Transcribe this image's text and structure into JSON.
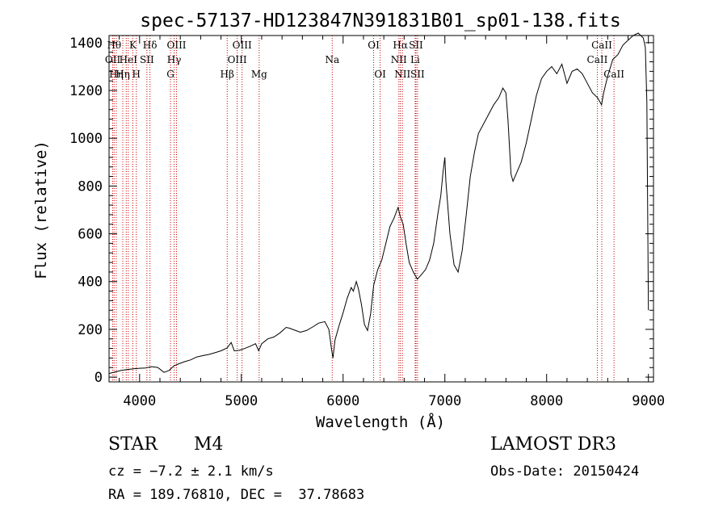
{
  "chart_data": {
    "type": "line",
    "title": "spec-57137-HD123847N391831B01_sp01-138.fits",
    "xlabel": "Wavelength (Å)",
    "ylabel": "Flux (relative)",
    "xlim": [
      3700,
      9050
    ],
    "ylim": [
      -20,
      1430
    ],
    "xticks": [
      4000,
      5000,
      6000,
      7000,
      8000,
      9000
    ],
    "yticks": [
      0,
      200,
      400,
      600,
      800,
      1000,
      1200,
      1400
    ],
    "series": [
      {
        "name": "spectrum",
        "points": [
          [
            3700,
            15
          ],
          [
            3760,
            22
          ],
          [
            3820,
            28
          ],
          [
            3880,
            32
          ],
          [
            3940,
            35
          ],
          [
            4000,
            37
          ],
          [
            4060,
            38
          ],
          [
            4120,
            44
          ],
          [
            4180,
            40
          ],
          [
            4240,
            20
          ],
          [
            4290,
            28
          ],
          [
            4340,
            48
          ],
          [
            4400,
            58
          ],
          [
            4450,
            66
          ],
          [
            4500,
            72
          ],
          [
            4560,
            84
          ],
          [
            4620,
            90
          ],
          [
            4680,
            95
          ],
          [
            4740,
            102
          ],
          [
            4800,
            110
          ],
          [
            4860,
            122
          ],
          [
            4900,
            145
          ],
          [
            4930,
            110
          ],
          [
            4980,
            112
          ],
          [
            5020,
            118
          ],
          [
            5080,
            128
          ],
          [
            5140,
            140
          ],
          [
            5170,
            110
          ],
          [
            5200,
            140
          ],
          [
            5260,
            160
          ],
          [
            5320,
            168
          ],
          [
            5380,
            185
          ],
          [
            5440,
            208
          ],
          [
            5470,
            205
          ],
          [
            5530,
            196
          ],
          [
            5580,
            188
          ],
          [
            5640,
            195
          ],
          [
            5700,
            210
          ],
          [
            5760,
            226
          ],
          [
            5820,
            232
          ],
          [
            5860,
            200
          ],
          [
            5885,
            120
          ],
          [
            5900,
            80
          ],
          [
            5920,
            155
          ],
          [
            5960,
            215
          ],
          [
            6000,
            270
          ],
          [
            6040,
            330
          ],
          [
            6080,
            375
          ],
          [
            6100,
            360
          ],
          [
            6130,
            400
          ],
          [
            6150,
            370
          ],
          [
            6180,
            305
          ],
          [
            6210,
            220
          ],
          [
            6240,
            195
          ],
          [
            6270,
            265
          ],
          [
            6300,
            385
          ],
          [
            6340,
            450
          ],
          [
            6380,
            490
          ],
          [
            6420,
            560
          ],
          [
            6460,
            630
          ],
          [
            6500,
            665
          ],
          [
            6540,
            710
          ],
          [
            6560,
            675
          ],
          [
            6590,
            640
          ],
          [
            6620,
            555
          ],
          [
            6650,
            480
          ],
          [
            6690,
            440
          ],
          [
            6730,
            410
          ],
          [
            6770,
            430
          ],
          [
            6810,
            450
          ],
          [
            6850,
            490
          ],
          [
            6890,
            560
          ],
          [
            6930,
            680
          ],
          [
            6960,
            760
          ],
          [
            6980,
            850
          ],
          [
            7000,
            920
          ],
          [
            7010,
            820
          ],
          [
            7050,
            600
          ],
          [
            7090,
            470
          ],
          [
            7130,
            440
          ],
          [
            7170,
            530
          ],
          [
            7210,
            680
          ],
          [
            7250,
            840
          ],
          [
            7290,
            940
          ],
          [
            7330,
            1020
          ],
          [
            7380,
            1060
          ],
          [
            7430,
            1100
          ],
          [
            7480,
            1140
          ],
          [
            7530,
            1170
          ],
          [
            7570,
            1210
          ],
          [
            7600,
            1190
          ],
          [
            7620,
            1080
          ],
          [
            7650,
            850
          ],
          [
            7670,
            820
          ],
          [
            7710,
            860
          ],
          [
            7750,
            900
          ],
          [
            7800,
            980
          ],
          [
            7850,
            1080
          ],
          [
            7900,
            1180
          ],
          [
            7950,
            1250
          ],
          [
            8000,
            1280
          ],
          [
            8050,
            1300
          ],
          [
            8100,
            1270
          ],
          [
            8150,
            1310
          ],
          [
            8200,
            1230
          ],
          [
            8250,
            1280
          ],
          [
            8300,
            1290
          ],
          [
            8350,
            1270
          ],
          [
            8400,
            1230
          ],
          [
            8450,
            1190
          ],
          [
            8500,
            1170
          ],
          [
            8540,
            1140
          ],
          [
            8560,
            1190
          ],
          [
            8600,
            1260
          ],
          [
            8650,
            1330
          ],
          [
            8700,
            1350
          ],
          [
            8750,
            1390
          ],
          [
            8800,
            1410
          ],
          [
            8850,
            1430
          ],
          [
            8900,
            1440
          ],
          [
            8950,
            1420
          ],
          [
            8970,
            1380
          ],
          [
            8985,
            1150
          ],
          [
            9000,
            280
          ]
        ]
      }
    ],
    "lines": [
      {
        "x": 3736,
        "label": "OII",
        "row": 1
      },
      {
        "x": 3750,
        "label": "Hθ",
        "row": 0
      },
      {
        "x": 3771,
        "label": "Hη",
        "row": 2
      },
      {
        "x": 3835,
        "label": "Hη",
        "row": 2
      },
      {
        "x": 3869,
        "label": "",
        "row": -1
      },
      {
        "x": 3889,
        "label": "HeI",
        "row": 1
      },
      {
        "x": 3934,
        "label": "K",
        "row": 0
      },
      {
        "x": 3968,
        "label": "H",
        "row": 2
      },
      {
        "x": 4072,
        "label": "SII",
        "row": 1
      },
      {
        "x": 4102,
        "label": "Hδ",
        "row": 0
      },
      {
        "x": 4304,
        "label": "G",
        "row": 2
      },
      {
        "x": 4340,
        "label": "Hγ",
        "row": 1
      },
      {
        "x": 4363,
        "label": "OIII",
        "row": 0
      },
      {
        "x": 4861,
        "label": "Hβ",
        "row": 2
      },
      {
        "x": 4959,
        "label": "OIII",
        "row": 1
      },
      {
        "x": 5007,
        "label": "OIII",
        "row": 0
      },
      {
        "x": 5175,
        "label": "Mg",
        "row": 2
      },
      {
        "x": 5893,
        "label": "Na",
        "row": 1
      },
      {
        "x": 6300,
        "label": "OI",
        "row": 0
      },
      {
        "x": 6364,
        "label": "OI",
        "row": 2
      },
      {
        "x": 6548,
        "label": "NII",
        "row": 1
      },
      {
        "x": 6563,
        "label": "Hα",
        "row": 0
      },
      {
        "x": 6583,
        "label": "NII",
        "row": 2
      },
      {
        "x": 6708,
        "label": "Li",
        "row": 1
      },
      {
        "x": 6716,
        "label": "SII",
        "row": 0
      },
      {
        "x": 6731,
        "label": "SII",
        "row": 2
      },
      {
        "x": 8498,
        "label": "CaII",
        "row": 1
      },
      {
        "x": 8542,
        "label": "CaII",
        "row": 0
      },
      {
        "x": 8662,
        "label": "CaII",
        "row": 2
      }
    ]
  },
  "info": {
    "class": "STAR",
    "subclass": "M4",
    "cz": "cz = −7.2 ± 2.1 km/s",
    "coords": "RA = 189.76810, DEC =  37.78683",
    "survey": "LAMOST DR3",
    "obsdate": "Obs-Date: 20150424"
  },
  "colors": {
    "axis": "#000000",
    "spectrum": "#000000",
    "line_marker": "#cc0000"
  }
}
